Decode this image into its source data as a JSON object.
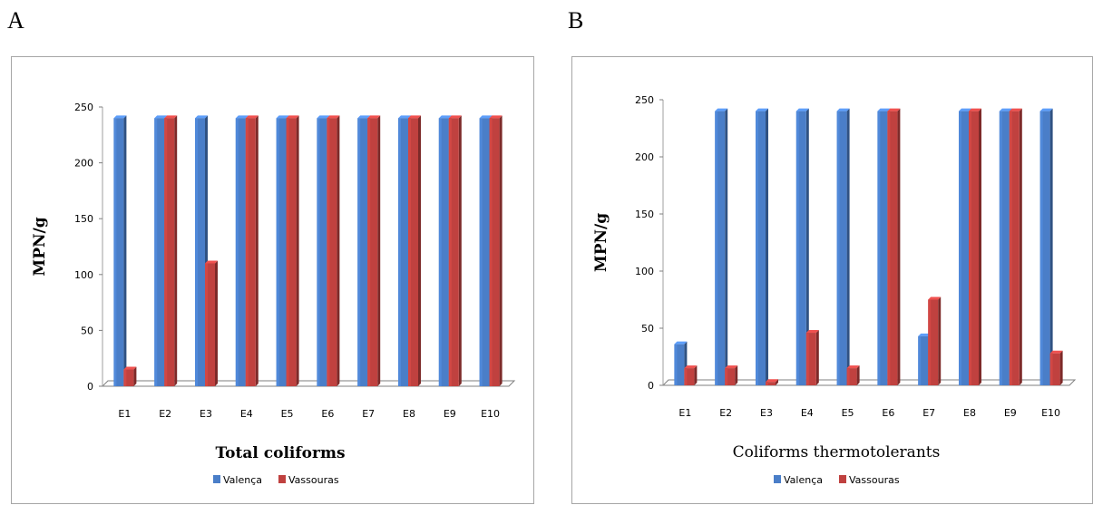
{
  "panels": [
    "A",
    "B"
  ],
  "colors": {
    "valenca": "#4a7ec8",
    "vassouras": "#c0413f"
  },
  "chart_data": [
    {
      "type": "bar",
      "title": "Total coliforms",
      "ylabel": "MPN/g",
      "xlabel": "",
      "ylim": [
        0,
        250
      ],
      "yticks": [
        0,
        50,
        100,
        150,
        200,
        250
      ],
      "categories": [
        "E1",
        "E2",
        "E3",
        "E4",
        "E5",
        "E6",
        "E7",
        "E8",
        "E9",
        "E10"
      ],
      "series": [
        {
          "name": "Valença",
          "values": [
            240,
            240,
            240,
            240,
            240,
            240,
            240,
            240,
            240,
            240
          ]
        },
        {
          "name": "Vassouras",
          "values": [
            15,
            240,
            110,
            240,
            240,
            240,
            240,
            240,
            240,
            240
          ]
        }
      ],
      "legend": "bottom",
      "grid": false
    },
    {
      "type": "bar",
      "title": "Coliforms thermotolerants",
      "ylabel": "MPN/g",
      "xlabel": "",
      "ylim": [
        0,
        250
      ],
      "yticks": [
        0,
        50,
        100,
        150,
        200,
        250
      ],
      "categories": [
        "E1",
        "E2",
        "E3",
        "E4",
        "E5",
        "E6",
        "E7",
        "E8",
        "E9",
        "E10"
      ],
      "series": [
        {
          "name": "Valença",
          "values": [
            36,
            240,
            240,
            240,
            240,
            240,
            43,
            240,
            240,
            240
          ]
        },
        {
          "name": "Vassouras",
          "values": [
            15,
            15,
            3,
            46,
            15,
            240,
            75,
            240,
            240,
            28
          ]
        }
      ],
      "legend": "bottom",
      "grid": false
    }
  ]
}
